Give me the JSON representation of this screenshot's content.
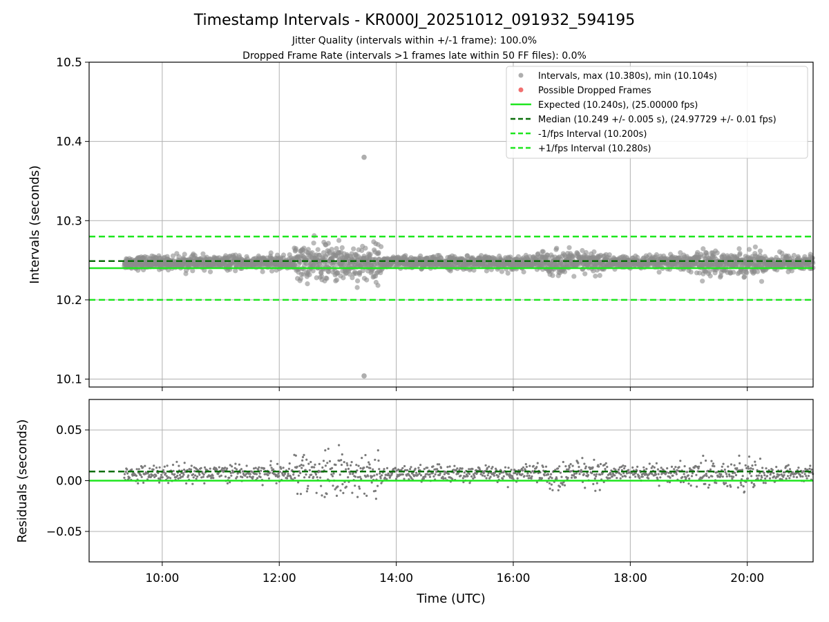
{
  "chart_data": [
    {
      "type": "scatter",
      "title": "Timestamp Intervals - KR000J_20251012_091932_594195",
      "subtitles": [
        "Jitter Quality (intervals within +/-1 frame): 100.0%",
        "Dropped Frame Rate (intervals >1 frames late within 50 FF files): 0.0%"
      ],
      "ylabel": "Intervals (seconds)",
      "xlabel": "",
      "xlim": [
        8.75,
        21.125
      ],
      "ylim": [
        10.09,
        10.5
      ],
      "y_ticks": [
        10.1,
        10.2,
        10.3,
        10.4,
        10.5
      ],
      "y_tick_labels": [
        "10.1",
        "10.2",
        "10.3",
        "10.4",
        "10.5"
      ],
      "x_ticks": [
        10,
        12,
        14,
        16,
        18,
        20
      ],
      "grid": true,
      "legend_position": "top-right",
      "legend": [
        "Intervals, max (10.380s), min (10.104s)",
        "Possible Dropped Frames",
        "Expected (10.240s), (25.00000 fps)",
        "Median (10.249 +/- 0.005 s), (24.97729 +/- 0.01 fps)",
        "-1/fps Interval (10.200s)",
        "+1/fps Interval (10.280s)"
      ],
      "data_range_hours": [
        9.35,
        21.125
      ],
      "expected": 10.24,
      "median": 10.249,
      "median_std": 0.005,
      "minus_1fps": 10.2,
      "plus_1fps": 10.28,
      "max_interval": 10.38,
      "min_interval": 10.104,
      "outliers": [
        {
          "x": 13.45,
          "y": 10.38
        },
        {
          "x": 13.45,
          "y": 10.104
        }
      ],
      "dropped_frames": [],
      "scatter_profile": {
        "base": 10.247,
        "spread": [
          {
            "from": 9.35,
            "to": 12.25,
            "sd": 0.004
          },
          {
            "from": 12.25,
            "to": 13.75,
            "sd": 0.011
          },
          {
            "from": 13.75,
            "to": 16.4,
            "sd": 0.004
          },
          {
            "from": 16.4,
            "to": 17.6,
            "sd": 0.007
          },
          {
            "from": 17.6,
            "to": 18.9,
            "sd": 0.004
          },
          {
            "from": 18.9,
            "to": 20.3,
            "sd": 0.007
          },
          {
            "from": 20.3,
            "to": 21.125,
            "sd": 0.005
          }
        ]
      },
      "colors": {
        "points": "#8c8c8c",
        "dropped": "#f06060",
        "expected": "#1ee61e",
        "median": "#0a6e0a",
        "fps_bounds": "#1ee61e"
      }
    },
    {
      "type": "scatter",
      "title": "",
      "xlabel": "Time (UTC)",
      "ylabel": "Residuals (seconds)",
      "xlim": [
        8.75,
        21.125
      ],
      "ylim": [
        -0.08,
        0.08
      ],
      "y_ticks": [
        -0.05,
        0.0,
        0.05
      ],
      "y_tick_labels": [
        "−0.05",
        "0.00",
        "0.05"
      ],
      "x_ticks": [
        10,
        12,
        14,
        16,
        18,
        20
      ],
      "x_tick_labels": [
        "10:00",
        "12:00",
        "14:00",
        "16:00",
        "18:00",
        "20:00"
      ],
      "grid": true,
      "zero_line": 0.0,
      "median_residual": 0.009,
      "colors": {
        "points": "#7a7a7a",
        "zero": "#1ee61e",
        "median": "#0a6e0a"
      }
    }
  ]
}
